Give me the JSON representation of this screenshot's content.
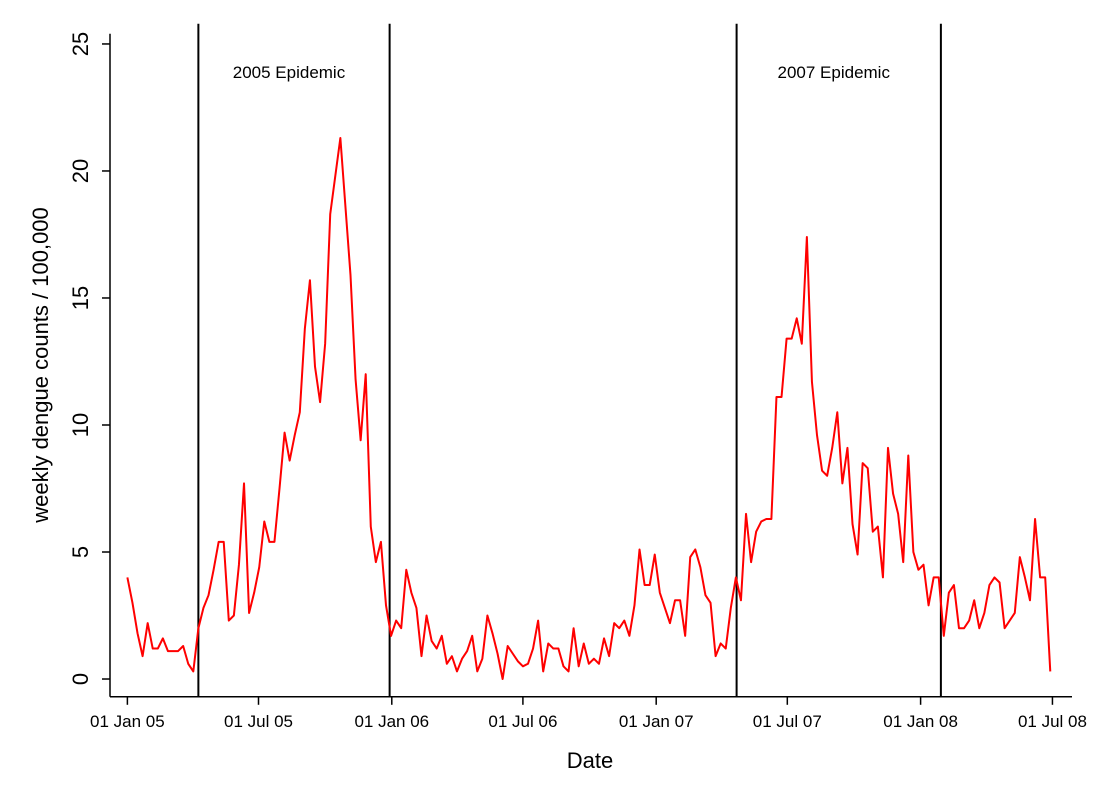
{
  "chart_data": {
    "type": "line",
    "xlabel": "Date",
    "ylabel": "weekly dengue counts / 100,000",
    "annotations": [
      "2005 Epidemic",
      "2007 Epidemic"
    ],
    "vlines": [
      "2005-04-09",
      "2005-12-29",
      "2007-04-22",
      "2008-01-29"
    ],
    "xlim": [
      "2004-12-08",
      "2008-07-28"
    ],
    "xticks": [
      {
        "value": "2005-01-01",
        "label": "01 Jan 05"
      },
      {
        "value": "2005-07-01",
        "label": "01 Jul 05"
      },
      {
        "value": "2006-01-01",
        "label": "01 Jan 06"
      },
      {
        "value": "2006-07-01",
        "label": "01 Jul 06"
      },
      {
        "value": "2007-01-01",
        "label": "01 Jan 07"
      },
      {
        "value": "2007-07-01",
        "label": "01 Jul 07"
      },
      {
        "value": "2008-01-01",
        "label": "01 Jan 08"
      },
      {
        "value": "2008-07-01",
        "label": "01 Jul 08"
      }
    ],
    "ylim": [
      -0.7,
      25.4
    ],
    "yticks": [
      0,
      5,
      10,
      15,
      20,
      25
    ],
    "x": [
      "2005-01-01",
      "2005-01-08",
      "2005-01-15",
      "2005-01-22",
      "2005-01-29",
      "2005-02-05",
      "2005-02-12",
      "2005-02-19",
      "2005-02-26",
      "2005-03-05",
      "2005-03-12",
      "2005-03-19",
      "2005-03-26",
      "2005-04-02",
      "2005-04-09",
      "2005-04-16",
      "2005-04-23",
      "2005-04-30",
      "2005-05-07",
      "2005-05-14",
      "2005-05-21",
      "2005-05-28",
      "2005-06-04",
      "2005-06-11",
      "2005-06-18",
      "2005-06-25",
      "2005-07-02",
      "2005-07-09",
      "2005-07-16",
      "2005-07-23",
      "2005-07-30",
      "2005-08-06",
      "2005-08-13",
      "2005-08-20",
      "2005-08-27",
      "2005-09-03",
      "2005-09-10",
      "2005-09-17",
      "2005-09-24",
      "2005-10-01",
      "2005-10-08",
      "2005-10-15",
      "2005-10-22",
      "2005-10-29",
      "2005-11-05",
      "2005-11-12",
      "2005-11-19",
      "2005-11-26",
      "2005-12-03",
      "2005-12-10",
      "2005-12-17",
      "2005-12-24",
      "2005-12-31",
      "2006-01-07",
      "2006-01-14",
      "2006-01-21",
      "2006-01-28",
      "2006-02-04",
      "2006-02-11",
      "2006-02-18",
      "2006-02-25",
      "2006-03-04",
      "2006-03-11",
      "2006-03-18",
      "2006-03-25",
      "2006-04-01",
      "2006-04-08",
      "2006-04-15",
      "2006-04-22",
      "2006-04-29",
      "2006-05-06",
      "2006-05-13",
      "2006-05-20",
      "2006-05-27",
      "2006-06-03",
      "2006-06-10",
      "2006-06-17",
      "2006-06-24",
      "2006-07-01",
      "2006-07-08",
      "2006-07-15",
      "2006-07-22",
      "2006-07-29",
      "2006-08-05",
      "2006-08-12",
      "2006-08-19",
      "2006-08-26",
      "2006-09-02",
      "2006-09-09",
      "2006-09-16",
      "2006-09-23",
      "2006-09-30",
      "2006-10-07",
      "2006-10-14",
      "2006-10-21",
      "2006-10-28",
      "2006-11-04",
      "2006-11-11",
      "2006-11-18",
      "2006-11-25",
      "2006-12-02",
      "2006-12-09",
      "2006-12-16",
      "2006-12-23",
      "2006-12-30",
      "2007-01-06",
      "2007-01-13",
      "2007-01-20",
      "2007-01-27",
      "2007-02-03",
      "2007-02-10",
      "2007-02-17",
      "2007-02-24",
      "2007-03-03",
      "2007-03-10",
      "2007-03-17",
      "2007-03-24",
      "2007-03-31",
      "2007-04-07",
      "2007-04-14",
      "2007-04-21",
      "2007-04-28",
      "2007-05-05",
      "2007-05-12",
      "2007-05-19",
      "2007-05-26",
      "2007-06-02",
      "2007-06-09",
      "2007-06-16",
      "2007-06-23",
      "2007-06-30",
      "2007-07-07",
      "2007-07-14",
      "2007-07-21",
      "2007-07-28",
      "2007-08-04",
      "2007-08-11",
      "2007-08-18",
      "2007-08-25",
      "2007-09-01",
      "2007-09-08",
      "2007-09-15",
      "2007-09-22",
      "2007-09-29",
      "2007-10-06",
      "2007-10-13",
      "2007-10-20",
      "2007-10-27",
      "2007-11-03",
      "2007-11-10",
      "2007-11-17",
      "2007-11-24",
      "2007-12-01",
      "2007-12-08",
      "2007-12-15",
      "2007-12-22",
      "2007-12-29",
      "2008-01-05",
      "2008-01-12",
      "2008-01-19",
      "2008-01-26",
      "2008-02-02",
      "2008-02-09",
      "2008-02-16",
      "2008-02-23",
      "2008-03-01",
      "2008-03-08",
      "2008-03-15",
      "2008-03-22",
      "2008-03-29",
      "2008-04-05",
      "2008-04-12",
      "2008-04-19",
      "2008-04-26",
      "2008-05-03",
      "2008-05-10",
      "2008-05-17",
      "2008-05-24",
      "2008-05-31",
      "2008-06-07",
      "2008-06-14",
      "2008-06-21",
      "2008-06-28"
    ],
    "series": [
      {
        "color": "#ff0000",
        "values": [
          4.0,
          3.0,
          1.8,
          0.9,
          2.2,
          1.2,
          1.2,
          1.6,
          1.1,
          1.1,
          1.1,
          1.3,
          0.6,
          0.3,
          2.0,
          2.8,
          3.3,
          4.3,
          5.4,
          5.4,
          2.3,
          2.5,
          4.5,
          7.7,
          2.6,
          3.4,
          4.4,
          6.2,
          5.4,
          5.4,
          7.5,
          9.7,
          8.6,
          9.6,
          10.5,
          13.8,
          15.7,
          12.3,
          10.9,
          13.2,
          18.3,
          19.8,
          21.3,
          18.6,
          15.9,
          11.8,
          9.4,
          12.0,
          6.0,
          4.6,
          5.4,
          2.9,
          1.7,
          2.3,
          2.0,
          4.3,
          3.4,
          2.8,
          0.9,
          2.5,
          1.5,
          1.2,
          1.7,
          0.6,
          0.9,
          0.3,
          0.8,
          1.1,
          1.7,
          0.3,
          0.8,
          2.5,
          1.8,
          1.0,
          0.0,
          1.3,
          1.0,
          0.7,
          0.5,
          0.6,
          1.2,
          2.3,
          0.3,
          1.4,
          1.2,
          1.2,
          0.5,
          0.3,
          2.0,
          0.5,
          1.4,
          0.6,
          0.8,
          0.6,
          1.6,
          0.9,
          2.2,
          2.0,
          2.3,
          1.7,
          2.9,
          5.1,
          3.7,
          3.7,
          4.9,
          3.4,
          2.8,
          2.2,
          3.1,
          3.1,
          1.7,
          4.8,
          5.1,
          4.4,
          3.3,
          3.0,
          0.9,
          1.4,
          1.2,
          2.8,
          4.0,
          3.1,
          6.5,
          4.6,
          5.8,
          6.2,
          6.3,
          6.3,
          11.1,
          11.1,
          13.4,
          13.4,
          14.2,
          13.2,
          17.4,
          11.7,
          9.6,
          8.2,
          8.0,
          9.1,
          10.5,
          7.7,
          9.1,
          6.1,
          4.9,
          8.5,
          8.3,
          5.8,
          6.0,
          4.0,
          9.1,
          7.3,
          6.5,
          4.6,
          8.8,
          5.0,
          4.3,
          4.5,
          2.9,
          4.0,
          4.0,
          1.7,
          3.4,
          3.7,
          2.0,
          2.0,
          2.3,
          3.1,
          2.0,
          2.6,
          3.7,
          4.0,
          3.8,
          2.0,
          2.3,
          2.6,
          4.8,
          4.0,
          3.1,
          6.3,
          4.0,
          4.0,
          0.3
        ]
      }
    ]
  }
}
